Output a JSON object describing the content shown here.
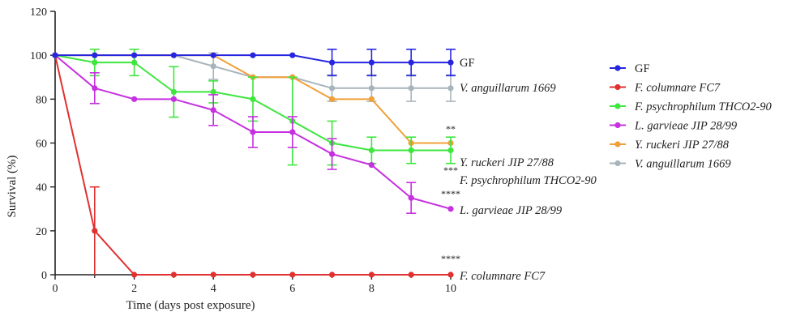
{
  "chart_data": {
    "type": "line",
    "title": "",
    "xlabel": "Time (days post exposure)",
    "ylabel": "Survival (%)",
    "xlim": [
      0,
      10
    ],
    "ylim": [
      0,
      120
    ],
    "x_ticks": [
      "0",
      "2",
      "4",
      "6",
      "8",
      "10"
    ],
    "y_ticks": [
      "0",
      "20",
      "40",
      "60",
      "80",
      "100",
      "120"
    ],
    "grid": false,
    "legend_position": "right",
    "x": [
      0,
      1,
      2,
      3,
      4,
      5,
      6,
      7,
      8,
      9,
      10
    ],
    "series": [
      {
        "name": "GF",
        "color": "#2626e0",
        "italic": false,
        "values": [
          100,
          100,
          100,
          100,
          100,
          100,
          100,
          96.7,
          96.7,
          96.7,
          96.7
        ],
        "errors": [
          0,
          0,
          0,
          0,
          0,
          0,
          0,
          6,
          6,
          6,
          6
        ],
        "end_label": "GF",
        "significance": ""
      },
      {
        "name": "F. columnare FC7",
        "color": "#e03030",
        "italic": true,
        "values": [
          100,
          20,
          0,
          0,
          0,
          0,
          0,
          0,
          0,
          0,
          0
        ],
        "errors": [
          0,
          20,
          0,
          0,
          0,
          0,
          0,
          0,
          0,
          0,
          0
        ],
        "end_label": "F. columnare FC7",
        "significance": "****"
      },
      {
        "name": "F. psychrophilum THCO2-90",
        "color": "#3ee63e",
        "italic": true,
        "values": [
          100,
          96.7,
          96.7,
          83.3,
          83.3,
          80,
          70,
          60,
          56.7,
          56.7,
          56.7
        ],
        "errors": [
          0,
          6,
          6,
          11.5,
          5,
          10,
          20,
          10,
          6,
          6,
          6
        ],
        "end_label": "F. psychrophilum THCO2-90",
        "significance": "***"
      },
      {
        "name": "L. garvieae JIP 28/99",
        "color": "#c630e0",
        "italic": true,
        "values": [
          100,
          85,
          80,
          80,
          75,
          65,
          65,
          55,
          50,
          35,
          30
        ],
        "errors": [
          0,
          7,
          0,
          0,
          7,
          7,
          7,
          7,
          0,
          7,
          0
        ],
        "end_label": "L. garvieae JIP 28/99",
        "significance": "****"
      },
      {
        "name": "Y. ruckeri JIP 27/88",
        "color": "#f0a038",
        "italic": true,
        "values": [
          100,
          100,
          100,
          100,
          100,
          90,
          90,
          80,
          80,
          60,
          60
        ],
        "errors": [
          0,
          0,
          0,
          0,
          0,
          0,
          0,
          0,
          0,
          0,
          0
        ],
        "end_label": "Y. ruckeri JIP 27/88",
        "significance": "**"
      },
      {
        "name": "V. anguillarum 1669",
        "color": "#a8b4bc",
        "italic": true,
        "values": [
          100,
          100,
          100,
          100,
          95,
          90,
          90,
          85,
          85,
          85,
          85
        ],
        "errors": [
          0,
          0,
          0,
          0,
          6,
          0,
          0,
          6,
          6,
          6,
          6
        ],
        "end_label": "V. anguillarum 1669",
        "significance": ""
      }
    ]
  }
}
